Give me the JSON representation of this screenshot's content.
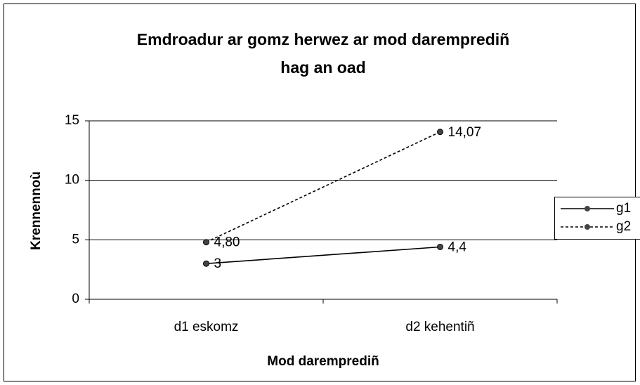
{
  "chart_data": {
    "type": "line",
    "title": "Emdroadur ar gomz herwez ar mod daremprediñ hag an oad",
    "title_lines": [
      "Emdroadur ar gomz herwez ar mod daremprediñ",
      "hag an oad"
    ],
    "xlabel": "Mod daremprediñ",
    "ylabel": "Krennennoù",
    "categories": [
      "d1 eskomz",
      "d2 kehentiñ"
    ],
    "series": [
      {
        "name": "g1",
        "color": "#000000",
        "dash": "solid",
        "values": [
          3,
          4.4
        ],
        "value_labels": [
          "3",
          "4,4"
        ]
      },
      {
        "name": "g2",
        "color": "#000000",
        "dash": "dotted",
        "values": [
          4.8,
          14.07
        ],
        "value_labels": [
          "4,80",
          "14,07"
        ]
      }
    ],
    "ylim": [
      0,
      15
    ],
    "yticks": [
      0,
      5,
      10,
      15
    ],
    "grid": true,
    "legend": "right"
  }
}
